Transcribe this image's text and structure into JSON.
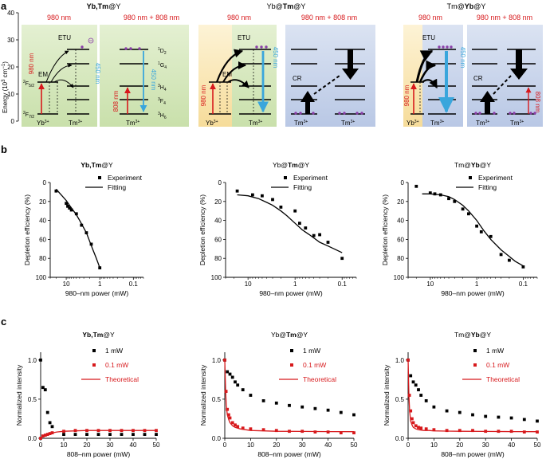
{
  "panels": {
    "a": "a",
    "b": "b",
    "c": "c"
  },
  "energy_axis": {
    "label": "Energy (10",
    "exp": "3",
    "unit": " cm",
    "unit_exp": "−1",
    "close": ")",
    "ticks": [
      "0",
      "10",
      "20",
      "30",
      "40"
    ]
  },
  "diagrams": {
    "d1": {
      "title_a": "Yb,Tm",
      "title_b": "@Y",
      "hdr_left": "980 nm",
      "hdr_right": "980 nm + 808 nm",
      "side_980": "980 nm",
      "side_808": "808 nm",
      "nm450": "450 nm",
      "nm450b": "450 nm",
      "etu": "ETU",
      "em": "EM",
      "F52": "F",
      "F52_pre": "2",
      "F52_sub": "5/2",
      "F72": "F",
      "F72_pre": "2",
      "F72_sub": "7/2",
      "yb": "Yb",
      "yb_sup": "3+",
      "tm": "Tm",
      "tm_sup": "3+",
      "tm2": "Tm",
      "tm2_sup": "3+",
      "levels": [
        {
          "pre": "1",
          "t": "D",
          "sub": "2"
        },
        {
          "pre": "1",
          "t": "G",
          "sub": "4"
        },
        {
          "pre": "3",
          "t": "H",
          "sub": "4"
        },
        {
          "pre": "3",
          "t": "F",
          "sub": "4"
        },
        {
          "pre": "3",
          "t": "H",
          "sub": "6"
        }
      ]
    },
    "d2": {
      "title_a": "Yb@",
      "title_b": "Tm",
      "title_c": "@Y",
      "hdr_left": "980 nm",
      "hdr_right": "980 nm + 808 nm",
      "side_980": "980 nm",
      "nm450": "450 nm",
      "etu": "ETU",
      "em": "EM",
      "cr": "CR",
      "yb": "Yb",
      "yb_sup": "3+",
      "tm": "Tm",
      "tm_sup": "3+",
      "tm2": "Tm",
      "tm3": "Tm",
      "sup": "3+"
    },
    "d3": {
      "title_a": "Tm@",
      "title_b": "Yb",
      "title_c": "@Y",
      "hdr_left": "980 nm",
      "hdr_right": "980 nm + 808 nm",
      "side_980": "980 nm",
      "side_808": "808 nm",
      "nm450": "450 nm",
      "etu": "ETU",
      "cr": "CR",
      "yb": "Yb",
      "tm": "Tm",
      "tm2": "Tm",
      "tm3": "Tm",
      "sup": "3+"
    }
  },
  "colors": {
    "green_bg": "#d2e5b8",
    "green_light": "#e8f2d8",
    "blue_bg": "#c7d3ea",
    "yellow_bg": "#f8e5b4",
    "red": "#d7191c",
    "cyan": "#3aa6dc",
    "purple": "#8a3fa8"
  },
  "chart_data": [
    {
      "id": "b1",
      "type": "scatter",
      "title_parts": [
        {
          "t": "Yb,Tm",
          "b": true
        },
        {
          "t": "@Y",
          "b": false
        }
      ],
      "xlabel": "980–nm power (mW)",
      "ylabel": "Depletion efficiency (%)",
      "xscale": "log",
      "xreversed": true,
      "xlim": [
        30,
        0.05
      ],
      "xticks": [
        {
          "v": 10,
          "l": "10"
        },
        {
          "v": 1,
          "l": "1"
        },
        {
          "v": 0.1,
          "l": "0.1"
        }
      ],
      "ylim": [
        0,
        100
      ],
      "yreversed": true,
      "yticks": [
        {
          "v": 0,
          "l": "0"
        },
        {
          "v": 20,
          "l": "20"
        },
        {
          "v": 40,
          "l": "40"
        },
        {
          "v": 60,
          "l": "60"
        },
        {
          "v": 80,
          "l": "80"
        },
        {
          "v": 100,
          "l": "100"
        }
      ],
      "legend": [
        "Experiment",
        "Fitting"
      ],
      "experiment": {
        "x": [
          20,
          10,
          9,
          8,
          7,
          5,
          3.5,
          2.5,
          1.8,
          1.0
        ],
        "y": [
          9,
          22,
          25,
          27,
          29,
          33,
          45,
          53,
          65,
          90
        ]
      },
      "fitting": {
        "x": [
          20,
          15,
          10,
          8,
          6,
          5,
          4,
          3,
          2.5,
          2,
          1.6,
          1.3,
          1.1,
          1.0
        ],
        "y": [
          7,
          12,
          19,
          24,
          30,
          34,
          40,
          48,
          53,
          62,
          71,
          79,
          86,
          90
        ]
      }
    },
    {
      "id": "b2",
      "type": "scatter",
      "title_parts": [
        {
          "t": "Yb@",
          "b": false
        },
        {
          "t": "Tm",
          "b": true
        },
        {
          "t": "@Y",
          "b": false
        }
      ],
      "xlabel": "980–nm power (mW)",
      "ylabel": "Depletion efficiency (%)",
      "xscale": "log",
      "xreversed": true,
      "xlim": [
        30,
        0.05
      ],
      "xticks": [
        {
          "v": 10,
          "l": "10"
        },
        {
          "v": 1,
          "l": "1"
        },
        {
          "v": 0.1,
          "l": "0.1"
        }
      ],
      "ylim": [
        0,
        100
      ],
      "yreversed": true,
      "yticks": [
        {
          "v": 0,
          "l": "0"
        },
        {
          "v": 20,
          "l": "20"
        },
        {
          "v": 40,
          "l": "40"
        },
        {
          "v": 60,
          "l": "60"
        },
        {
          "v": 80,
          "l": "80"
        },
        {
          "v": 100,
          "l": "100"
        }
      ],
      "legend": [
        "Experiment",
        "Fitting"
      ],
      "experiment": {
        "x": [
          17,
          8,
          5,
          3,
          2,
          1,
          0.8,
          0.6,
          0.4,
          0.3,
          0.2,
          0.1
        ],
        "y": [
          9,
          13,
          14,
          18,
          26,
          30,
          43,
          48,
          56,
          55,
          63,
          80
        ]
      },
      "fitting": {
        "x": [
          17,
          10,
          6,
          4,
          3,
          2,
          1.5,
          1,
          0.7,
          0.5,
          0.3,
          0.2,
          0.1
        ],
        "y": [
          13,
          14,
          17,
          21,
          24,
          30,
          35,
          43,
          50,
          55,
          63,
          67,
          74
        ]
      }
    },
    {
      "id": "b3",
      "type": "scatter",
      "title_parts": [
        {
          "t": "Tm@",
          "b": false
        },
        {
          "t": "Yb",
          "b": true
        },
        {
          "t": "@Y",
          "b": false
        }
      ],
      "xlabel": "980–nm power (mW)",
      "ylabel": "Depletion efficiency (%)",
      "xscale": "log",
      "xreversed": true,
      "xlim": [
        30,
        0.05
      ],
      "xticks": [
        {
          "v": 10,
          "l": "10"
        },
        {
          "v": 1,
          "l": "1"
        },
        {
          "v": 0.1,
          "l": "0.1"
        }
      ],
      "ylim": [
        0,
        100
      ],
      "yreversed": true,
      "yticks": [
        {
          "v": 0,
          "l": "0"
        },
        {
          "v": 20,
          "l": "20"
        },
        {
          "v": 40,
          "l": "40"
        },
        {
          "v": 60,
          "l": "60"
        },
        {
          "v": 80,
          "l": "80"
        },
        {
          "v": 100,
          "l": "100"
        }
      ],
      "legend": [
        "Experiment",
        "Fitting"
      ],
      "experiment": {
        "x": [
          20,
          10,
          8,
          6,
          4,
          3,
          2,
          1.5,
          1,
          0.8,
          0.5,
          0.3,
          0.2,
          0.1
        ],
        "y": [
          4,
          11,
          12,
          13,
          17,
          20,
          28,
          33,
          46,
          52,
          57,
          76,
          82,
          89
        ]
      },
      "fitting": {
        "x": [
          15,
          10,
          6,
          4,
          3,
          2,
          1.5,
          1,
          0.7,
          0.5,
          0.3,
          0.2,
          0.15,
          0.1
        ],
        "y": [
          12,
          12,
          13,
          15,
          18,
          24,
          30,
          40,
          51,
          60,
          71,
          78,
          83,
          88
        ]
      }
    },
    {
      "id": "c1",
      "type": "scatter",
      "title_parts": [
        {
          "t": "Yb,Tm",
          "b": true
        },
        {
          "t": "@Y",
          "b": false
        }
      ],
      "xlabel": "808–nm power (mW)",
      "ylabel": "Normalized intensity",
      "xscale": "linear",
      "xlim": [
        0,
        50
      ],
      "xticks": [
        {
          "v": 0,
          "l": "0"
        },
        {
          "v": 10,
          "l": "10"
        },
        {
          "v": 20,
          "l": "20"
        },
        {
          "v": 30,
          "l": "30"
        },
        {
          "v": 40,
          "l": "40"
        },
        {
          "v": 50,
          "l": "50"
        }
      ],
      "ylim": [
        0,
        1.1
      ],
      "yticks": [
        {
          "v": 0,
          "l": "0.0"
        },
        {
          "v": 0.5,
          "l": "0.5"
        },
        {
          "v": 1,
          "l": "1.0"
        }
      ],
      "legend": [
        "1 mW",
        "0.1 mW",
        "Theoretical"
      ],
      "series_1mW": {
        "x": [
          0,
          1,
          2,
          3,
          4,
          5,
          10,
          15,
          20,
          25,
          30,
          35,
          40,
          45,
          50
        ],
        "y": [
          1.0,
          0.65,
          0.62,
          0.33,
          0.2,
          0.15,
          0.05,
          0.05,
          0.05,
          0.05,
          0.05,
          0.05,
          0.05,
          0.05,
          0.05
        ]
      },
      "series_01mW": {
        "x": [
          0,
          1,
          2,
          3,
          4,
          5,
          10,
          15,
          20,
          25,
          30,
          35,
          40,
          45,
          50
        ],
        "y": [
          0.0,
          0.03,
          0.04,
          0.05,
          0.06,
          0.07,
          0.09,
          0.1,
          0.1,
          0.1,
          0.1,
          0.1,
          0.1,
          0.1,
          0.1
        ]
      },
      "theoretical": {
        "x": [
          0,
          1,
          2,
          3,
          4,
          5,
          7,
          10,
          15,
          20,
          30,
          40,
          50
        ],
        "y": [
          0,
          0.02,
          0.035,
          0.05,
          0.06,
          0.068,
          0.08,
          0.09,
          0.095,
          0.1,
          0.1,
          0.1,
          0.1
        ]
      }
    },
    {
      "id": "c2",
      "type": "scatter",
      "title_parts": [
        {
          "t": "Yb@",
          "b": false
        },
        {
          "t": "Tm",
          "b": true
        },
        {
          "t": "@Y",
          "b": false
        }
      ],
      "xlabel": "808–nm power (mW)",
      "ylabel": "Normalized intensity",
      "xscale": "linear",
      "xlim": [
        0,
        50
      ],
      "xticks": [
        {
          "v": 0,
          "l": "0"
        },
        {
          "v": 10,
          "l": "10"
        },
        {
          "v": 20,
          "l": "20"
        },
        {
          "v": 30,
          "l": "30"
        },
        {
          "v": 40,
          "l": "40"
        },
        {
          "v": 50,
          "l": "50"
        }
      ],
      "ylim": [
        0,
        1.1
      ],
      "yticks": [
        {
          "v": 0,
          "l": "0.0"
        },
        {
          "v": 0.5,
          "l": "0.5"
        },
        {
          "v": 1,
          "l": "1.0"
        }
      ],
      "legend": [
        "1 mW",
        "0.1 mW",
        "Theoretical"
      ],
      "series_1mW": {
        "x": [
          0,
          1,
          2,
          3,
          4,
          5,
          7,
          10,
          15,
          20,
          25,
          30,
          35,
          40,
          45,
          50
        ],
        "y": [
          1.0,
          0.85,
          0.82,
          0.78,
          0.72,
          0.68,
          0.62,
          0.55,
          0.48,
          0.45,
          0.42,
          0.4,
          0.38,
          0.36,
          0.33,
          0.3
        ]
      },
      "series_01mW": {
        "x": [
          0,
          0.5,
          1,
          1.5,
          2,
          3,
          4,
          5,
          7,
          10,
          15,
          20,
          25,
          30,
          35,
          40,
          45,
          50
        ],
        "y": [
          1.0,
          0.6,
          0.37,
          0.3,
          0.26,
          0.2,
          0.17,
          0.15,
          0.13,
          0.12,
          0.11,
          0.1,
          0.09,
          0.09,
          0.08,
          0.08,
          0.07,
          0.07
        ]
      },
      "theoretical": {
        "x": [
          0,
          0.3,
          0.6,
          1,
          1.5,
          2,
          3,
          4,
          6,
          8,
          10,
          15,
          20,
          30,
          40,
          50
        ],
        "y": [
          1.0,
          0.62,
          0.42,
          0.3,
          0.24,
          0.2,
          0.16,
          0.14,
          0.12,
          0.11,
          0.1,
          0.095,
          0.09,
          0.088,
          0.086,
          0.085
        ]
      }
    },
    {
      "id": "c3",
      "type": "scatter",
      "title_parts": [
        {
          "t": "Tm@",
          "b": false
        },
        {
          "t": "Yb",
          "b": true
        },
        {
          "t": "@Y",
          "b": false
        }
      ],
      "xlabel": "808–nm power (mW)",
      "ylabel": "Normalized intensity",
      "xscale": "linear",
      "xlim": [
        0,
        50
      ],
      "xticks": [
        {
          "v": 0,
          "l": "0"
        },
        {
          "v": 10,
          "l": "10"
        },
        {
          "v": 20,
          "l": "20"
        },
        {
          "v": 30,
          "l": "30"
        },
        {
          "v": 40,
          "l": "40"
        },
        {
          "v": 50,
          "l": "50"
        }
      ],
      "ylim": [
        0,
        1.1
      ],
      "yticks": [
        {
          "v": 0,
          "l": "0.0"
        },
        {
          "v": 0.5,
          "l": "0.5"
        },
        {
          "v": 1,
          "l": "1.0"
        }
      ],
      "legend": [
        "1 mW",
        "0.1 mW",
        "Theoretical"
      ],
      "series_1mW": {
        "x": [
          0,
          1,
          2,
          3,
          4,
          5,
          7,
          10,
          15,
          20,
          25,
          30,
          35,
          40,
          45,
          50
        ],
        "y": [
          1.0,
          0.8,
          0.72,
          0.68,
          0.62,
          0.55,
          0.48,
          0.4,
          0.35,
          0.33,
          0.3,
          0.28,
          0.27,
          0.26,
          0.24,
          0.22
        ]
      },
      "series_01mW": {
        "x": [
          0,
          0.5,
          1,
          1.5,
          2,
          3,
          4,
          5,
          7,
          10,
          15,
          20,
          25,
          30,
          35,
          40,
          45,
          50
        ],
        "y": [
          1.0,
          0.55,
          0.35,
          0.25,
          0.2,
          0.16,
          0.14,
          0.13,
          0.12,
          0.11,
          0.1,
          0.1,
          0.1,
          0.09,
          0.09,
          0.09,
          0.08,
          0.08
        ]
      },
      "theoretical": {
        "x": [
          0,
          0.3,
          0.6,
          1,
          1.5,
          2,
          3,
          4,
          6,
          8,
          10,
          15,
          20,
          30,
          40,
          50
        ],
        "y": [
          1.0,
          0.55,
          0.35,
          0.22,
          0.17,
          0.14,
          0.12,
          0.11,
          0.1,
          0.1,
          0.095,
          0.092,
          0.09,
          0.088,
          0.086,
          0.085
        ]
      }
    }
  ]
}
